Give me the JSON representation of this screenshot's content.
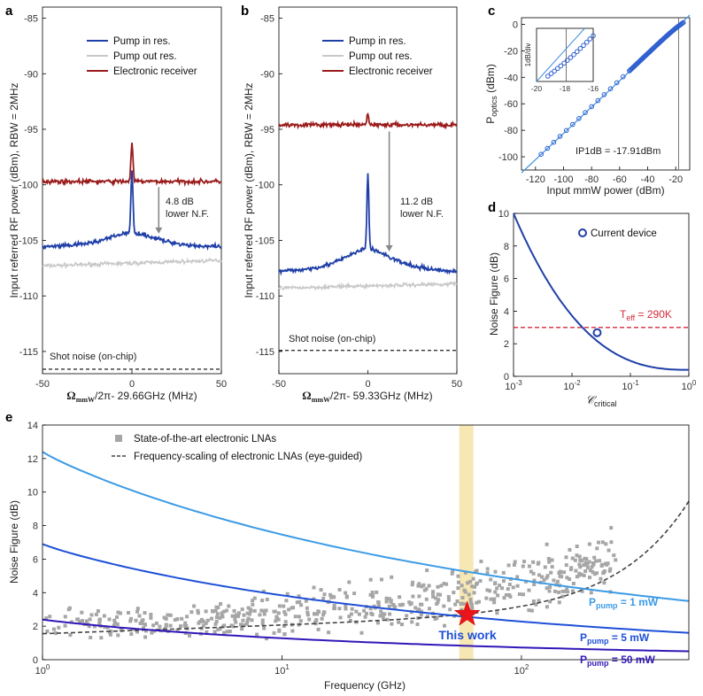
{
  "chart_data": [
    {
      "id": "a",
      "type": "line",
      "panel_label": "a",
      "xlabel_main": "Ω",
      "xlabel_sub": "mmW",
      "xlabel_rest": "/2π- 29.66GHz (MHz)",
      "ylabel": "Input referred RF power (dBm), RBW = 2MHz",
      "xlim": [
        -50,
        50
      ],
      "ylim": [
        -117,
        -84
      ],
      "xticks": [
        "-50",
        "0",
        "50"
      ],
      "yticks": [
        "-85",
        "-90",
        "-95",
        "-100",
        "-105",
        "-110",
        "-115"
      ],
      "legend": [
        "Pump in res.",
        "Pump out res.",
        "Electronic receiver"
      ],
      "series_colors": [
        "#1f3fa8",
        "#c8c8c8",
        "#9b1b1b"
      ],
      "series": [
        {
          "name": "Pump in res.",
          "baseline_edge": -105.6,
          "baseline_center": -104.3,
          "peak": -98.8
        },
        {
          "name": "Pump out res.",
          "level_left": -107.3,
          "level_right": -106.8
        },
        {
          "name": "Electronic receiver",
          "level": -99.7,
          "peak": -96.2
        }
      ],
      "shot_noise": -116.6,
      "shot_noise_label": "Shot noise (on-chip)",
      "annotation": [
        "4.8 dB",
        "lower N.F."
      ],
      "arrow": {
        "x": 15,
        "from": -100.2,
        "to": -104.4
      }
    },
    {
      "id": "b",
      "type": "line",
      "panel_label": "b",
      "xlabel_main": "Ω",
      "xlabel_sub": "mmW",
      "xlabel_rest": "/2π- 59.33GHz (MHz)",
      "ylabel": "Input referred RF power (dBm), RBW = 2MHz",
      "xlim": [
        -50,
        50
      ],
      "ylim": [
        -117,
        -84
      ],
      "xticks": [
        "-50",
        "0",
        "50"
      ],
      "yticks": [
        "-85",
        "-90",
        "-95",
        "-100",
        "-105",
        "-110",
        "-115"
      ],
      "legend": [
        "Pump in res.",
        "Pump out res.",
        "Electronic receiver"
      ],
      "series_colors": [
        "#1f3fa8",
        "#c8c8c8",
        "#9b1b1b"
      ],
      "series": [
        {
          "name": "Pump in res.",
          "baseline_edge": -107.8,
          "baseline_center": -105.8,
          "peak": -99.0
        },
        {
          "name": "Pump out res.",
          "level_left": -109.3,
          "level_right": -108.9
        },
        {
          "name": "Electronic receiver",
          "level": -94.6,
          "peak": -93.6
        }
      ],
      "shot_noise": -114.9,
      "shot_noise_label": "Shot noise (on-chip)",
      "annotation": [
        "11.2 dB",
        "lower N.F."
      ],
      "arrow": {
        "x": 12,
        "from": -95.2,
        "to": -106.0
      }
    },
    {
      "id": "c",
      "type": "scatter",
      "panel_label": "c",
      "xlabel": "Input mmW power (dBm)",
      "ylabel_main": "P",
      "ylabel_sub": "optics",
      "ylabel_rest": " (dBm)",
      "xlim": [
        -130,
        -10
      ],
      "ylim": [
        -110,
        5
      ],
      "xticks": [
        "-120",
        "-100",
        "-80",
        "-60",
        "-40",
        "-20"
      ],
      "yticks": [
        "0",
        "-20",
        "-40",
        "-60",
        "-80",
        "-100"
      ],
      "fit_line": {
        "slope": 1,
        "intercept": 17.9
      },
      "vline": -17.91,
      "annotation": "IP1dB = -17.91dBm",
      "inset": {
        "xticks": [
          "-20",
          "-18",
          "-16"
        ],
        "ylabel": "1dB/div",
        "xlim": [
          -20,
          -16
        ]
      }
    },
    {
      "id": "d",
      "type": "line",
      "panel_label": "d",
      "xlabel": "𝒞",
      "xlabel_sub": "critical",
      "ylabel": "Noise Figure (dB)",
      "xlim_log10": [
        -3,
        0
      ],
      "ylim": [
        0,
        10
      ],
      "xticks": [
        "10",
        "10",
        "10",
        "10"
      ],
      "xtick_exps": [
        "-3",
        "-2",
        "-1",
        "0"
      ],
      "yticks": [
        "0",
        "2",
        "4",
        "6",
        "8",
        "10"
      ],
      "legend": [
        "Current device"
      ],
      "current_device": {
        "C": 0.027,
        "nf": 2.68
      },
      "threshold": 3.0,
      "threshold_label_main": "T",
      "threshold_label_sub": "eff",
      "threshold_label_rest": " = 290K",
      "colors": {
        "curve": "#1f3fa8",
        "threshold": "#d42a3a"
      }
    },
    {
      "id": "e",
      "type": "scatter",
      "panel_label": "e",
      "xlabel": "Frequency (GHz)",
      "ylabel": "Noise Figure (dB)",
      "xlim": [
        1,
        500
      ],
      "ylim": [
        0,
        14
      ],
      "xticks": [
        "10",
        "10",
        "10"
      ],
      "xtick_exps": [
        "0",
        "1",
        "2"
      ],
      "yticks": [
        "0",
        "2",
        "4",
        "6",
        "8",
        "10",
        "12",
        "14"
      ],
      "legend": [
        "State-of-the-art electronic LNAs",
        "Frequency-scaling of electronic LNAs (eye-guided)"
      ],
      "series": [
        {
          "name": "P_pump = 1 mW",
          "nf_at_1GHz": 12.4,
          "nf_at_500GHz": 3.5,
          "color": "#3c9be6"
        },
        {
          "name": "P_pump = 5 mW",
          "nf_at_1GHz": 6.9,
          "nf_at_500GHz": 1.6,
          "color": "#1e50d8"
        },
        {
          "name": "P_pump = 50 mW",
          "nf_at_1GHz": 2.4,
          "nf_at_500GHz": 0.5,
          "color": "#3018b8"
        }
      ],
      "labels": [
        {
          "main": "P",
          "sub": "pump",
          "rest": " = 1 mW"
        },
        {
          "main": "P",
          "sub": "pump",
          "rest": " = 5 mW"
        },
        {
          "main": "P",
          "sub": "pump",
          "rest": " = 50 mW"
        }
      ],
      "this_work": {
        "freq": 59.33,
        "nf": 2.7,
        "label": "This work"
      },
      "highlight_band_ghz": [
        55,
        63
      ]
    }
  ]
}
